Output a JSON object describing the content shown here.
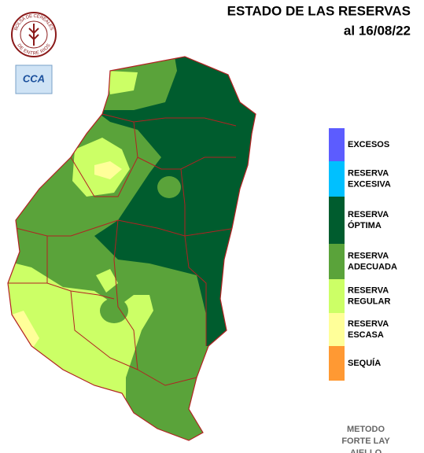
{
  "header": {
    "title": "ESTADO DE LAS RESERVAS",
    "date": "al 16/08/22"
  },
  "logos": {
    "bolsa_top": "BOLSA DE CEREALES",
    "bolsa_bottom": "DE ENTRE RIOS",
    "cca": "CCA"
  },
  "legend": [
    {
      "lines": [
        "EXCESOS"
      ],
      "color": "#5c5cff"
    },
    {
      "lines": [
        "RESERVA",
        "EXCESIVA"
      ],
      "color": "#00c0ff"
    },
    {
      "lines": [
        "RESERVA",
        "ÓPTIMA"
      ],
      "color": "#005c2e"
    },
    {
      "lines": [
        "RESERVA",
        "ADECUADA"
      ],
      "color": "#5aa33a"
    },
    {
      "lines": [
        "RESERVA",
        "REGULAR"
      ],
      "color": "#ccff66"
    },
    {
      "lines": [
        "RESERVA",
        "ESCASA"
      ],
      "color": "#ffff99"
    },
    {
      "lines": [
        "SEQUÍA"
      ],
      "color": "#ff9933"
    }
  ],
  "method": [
    "METODO",
    "FORTE LAY",
    "AIELLO"
  ]
}
